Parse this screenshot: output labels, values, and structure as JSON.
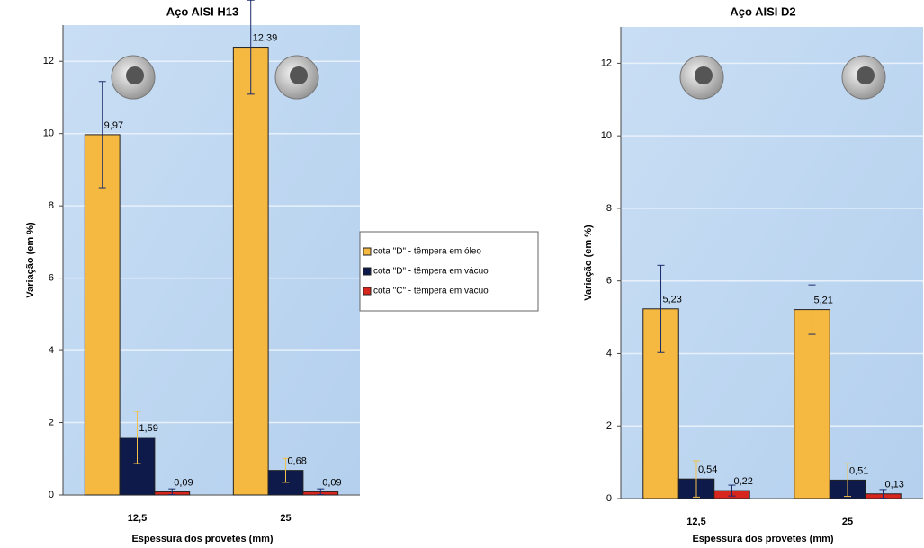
{
  "chart_data": [
    {
      "type": "bar",
      "title": "Aço AISI H13",
      "x_label": "Espessura dos provetes (mm)",
      "y_label": "Variação (em %)",
      "categories": [
        "12,5",
        "25"
      ],
      "ylim": [
        0,
        13
      ],
      "yticks": [
        0,
        2,
        4,
        6,
        8,
        10,
        12
      ],
      "grid": true,
      "legend": "right",
      "series": [
        {
          "name": "cota \"D\" - têmpera em óleo",
          "color": "#f5b942",
          "values": [
            9.97,
            12.39
          ],
          "value_labels": [
            "9,97",
            "12,39"
          ],
          "errors": [
            1.47,
            1.3
          ]
        },
        {
          "name": "cota \"D\" - têmpera em vácuo",
          "color": "#0d1a4a",
          "values": [
            1.59,
            0.68
          ],
          "value_labels": [
            "1,59",
            "0,68"
          ],
          "errors": [
            0.72,
            0.33
          ]
        },
        {
          "name": "cota \"C\" - têmpera em vácuo",
          "color": "#d7261e",
          "values": [
            0.09,
            0.09
          ],
          "value_labels": [
            "0,09",
            "0,09"
          ],
          "errors": [
            0.08,
            0.08
          ]
        }
      ]
    },
    {
      "type": "bar",
      "title": "Aço AISI D2",
      "x_label": "Espessura dos provetes (mm)",
      "y_label": "Variação (em %)",
      "categories": [
        "12,5",
        "25"
      ],
      "ylim": [
        0,
        13
      ],
      "yticks": [
        0,
        2,
        4,
        6,
        8,
        10,
        12
      ],
      "grid": true,
      "series": [
        {
          "color": "#f5b942",
          "values": [
            5.23,
            5.21
          ],
          "value_labels": [
            "5,23",
            "5,21"
          ],
          "errors": [
            1.2,
            0.68
          ]
        },
        {
          "color": "#0d1a4a",
          "values": [
            0.54,
            0.51
          ],
          "value_labels": [
            "0,54",
            "0,51"
          ],
          "errors": [
            0.5,
            0.45
          ]
        },
        {
          "color": "#d7261e",
          "values": [
            0.22,
            0.13
          ],
          "value_labels": [
            "0,22",
            "0,13"
          ],
          "errors": [
            0.15,
            0.12
          ]
        }
      ]
    }
  ]
}
